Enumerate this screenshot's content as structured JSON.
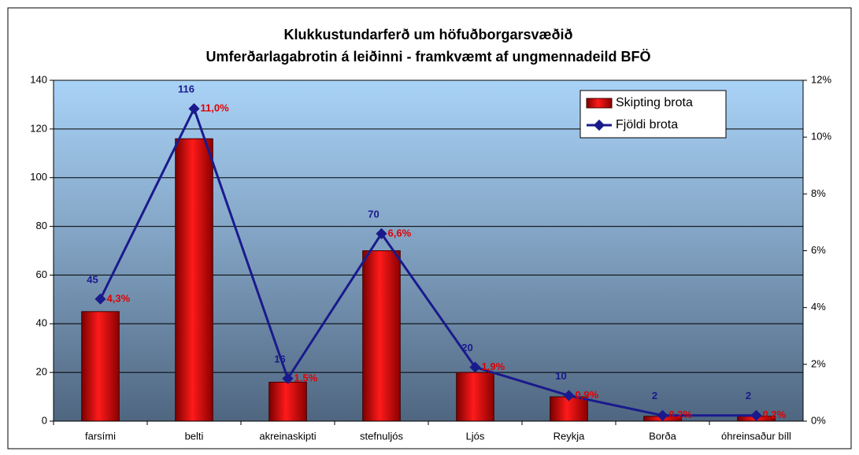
{
  "chart_data": {
    "type": "bar_line",
    "title": "Klukkustundarferð um höfuðborgarsvæðið",
    "subtitle": "Umferðarlagabrotin á leiðinni - framkvæmt af ungmennadeild BFÖ",
    "categories": [
      "farsími",
      "belti",
      "akreinaskipti",
      "stefnuljós",
      "Ljós",
      "Reykja",
      "Borða",
      "óhreinsaður bíll"
    ],
    "series": [
      {
        "name": "Skipting brota",
        "color": "#e00000",
        "values": [
          45,
          116,
          16,
          70,
          20,
          10,
          2,
          2
        ]
      },
      {
        "name": "Fjöldi brota",
        "color": "#1a1a8c",
        "axis": "y2",
        "values": [
          4.3,
          11.0,
          1.5,
          6.6,
          1.9,
          0.9,
          0.2,
          0.2
        ],
        "value_labels": [
          "4,3%",
          "11,0%",
          "1,5%",
          "6,6%",
          "1,9%",
          "0,9%",
          "0,2%",
          "0,2%"
        ]
      }
    ],
    "ylim": [
      0,
      140
    ],
    "yticks": [
      0,
      20,
      40,
      60,
      80,
      100,
      120,
      140
    ],
    "y2lim": [
      0,
      12
    ],
    "y2ticks": [
      {
        "value": 0,
        "label": "0%"
      },
      {
        "value": 2,
        "label": "2%"
      },
      {
        "value": 4,
        "label": "4%"
      },
      {
        "value": 6,
        "label": "6%"
      },
      {
        "value": 8,
        "label": "8%"
      },
      {
        "value": 10,
        "label": "10%"
      },
      {
        "value": 12,
        "label": "12%"
      }
    ],
    "grid": true,
    "legend": "upper right"
  }
}
